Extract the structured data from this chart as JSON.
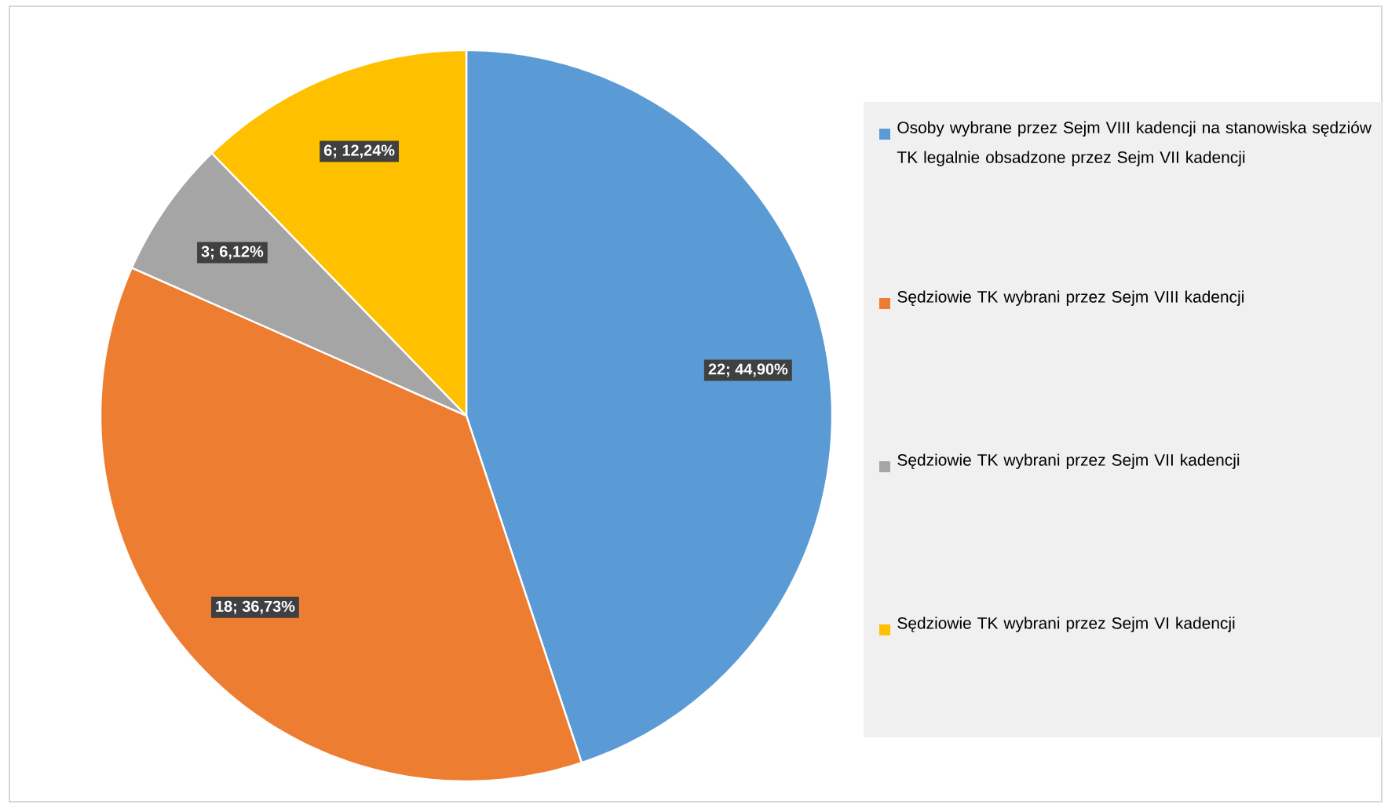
{
  "chart_data": {
    "type": "pie",
    "categories": [
      "Osoby wybrane przez Sejm VIII kadencji na stanowiska sędziów TK legalnie obsadzone przez Sejm VII kadencji",
      "Sędziowie TK wybrani przez Sejm VIII kadencji",
      "Sędziowie TK wybrani przez Sejm VII kadencji",
      "Sędziowie TK wybrani przez Sejm VI kadencji"
    ],
    "values": [
      22,
      18,
      3,
      6
    ],
    "value_labels": [
      "22; 44,90%",
      "18; 36,73%",
      "3; 6,12%",
      "6; 12,24%"
    ],
    "colors": [
      "#5b9bd5",
      "#ed7d31",
      "#a5a5a5",
      "#ffc000"
    ],
    "legend": "right"
  }
}
